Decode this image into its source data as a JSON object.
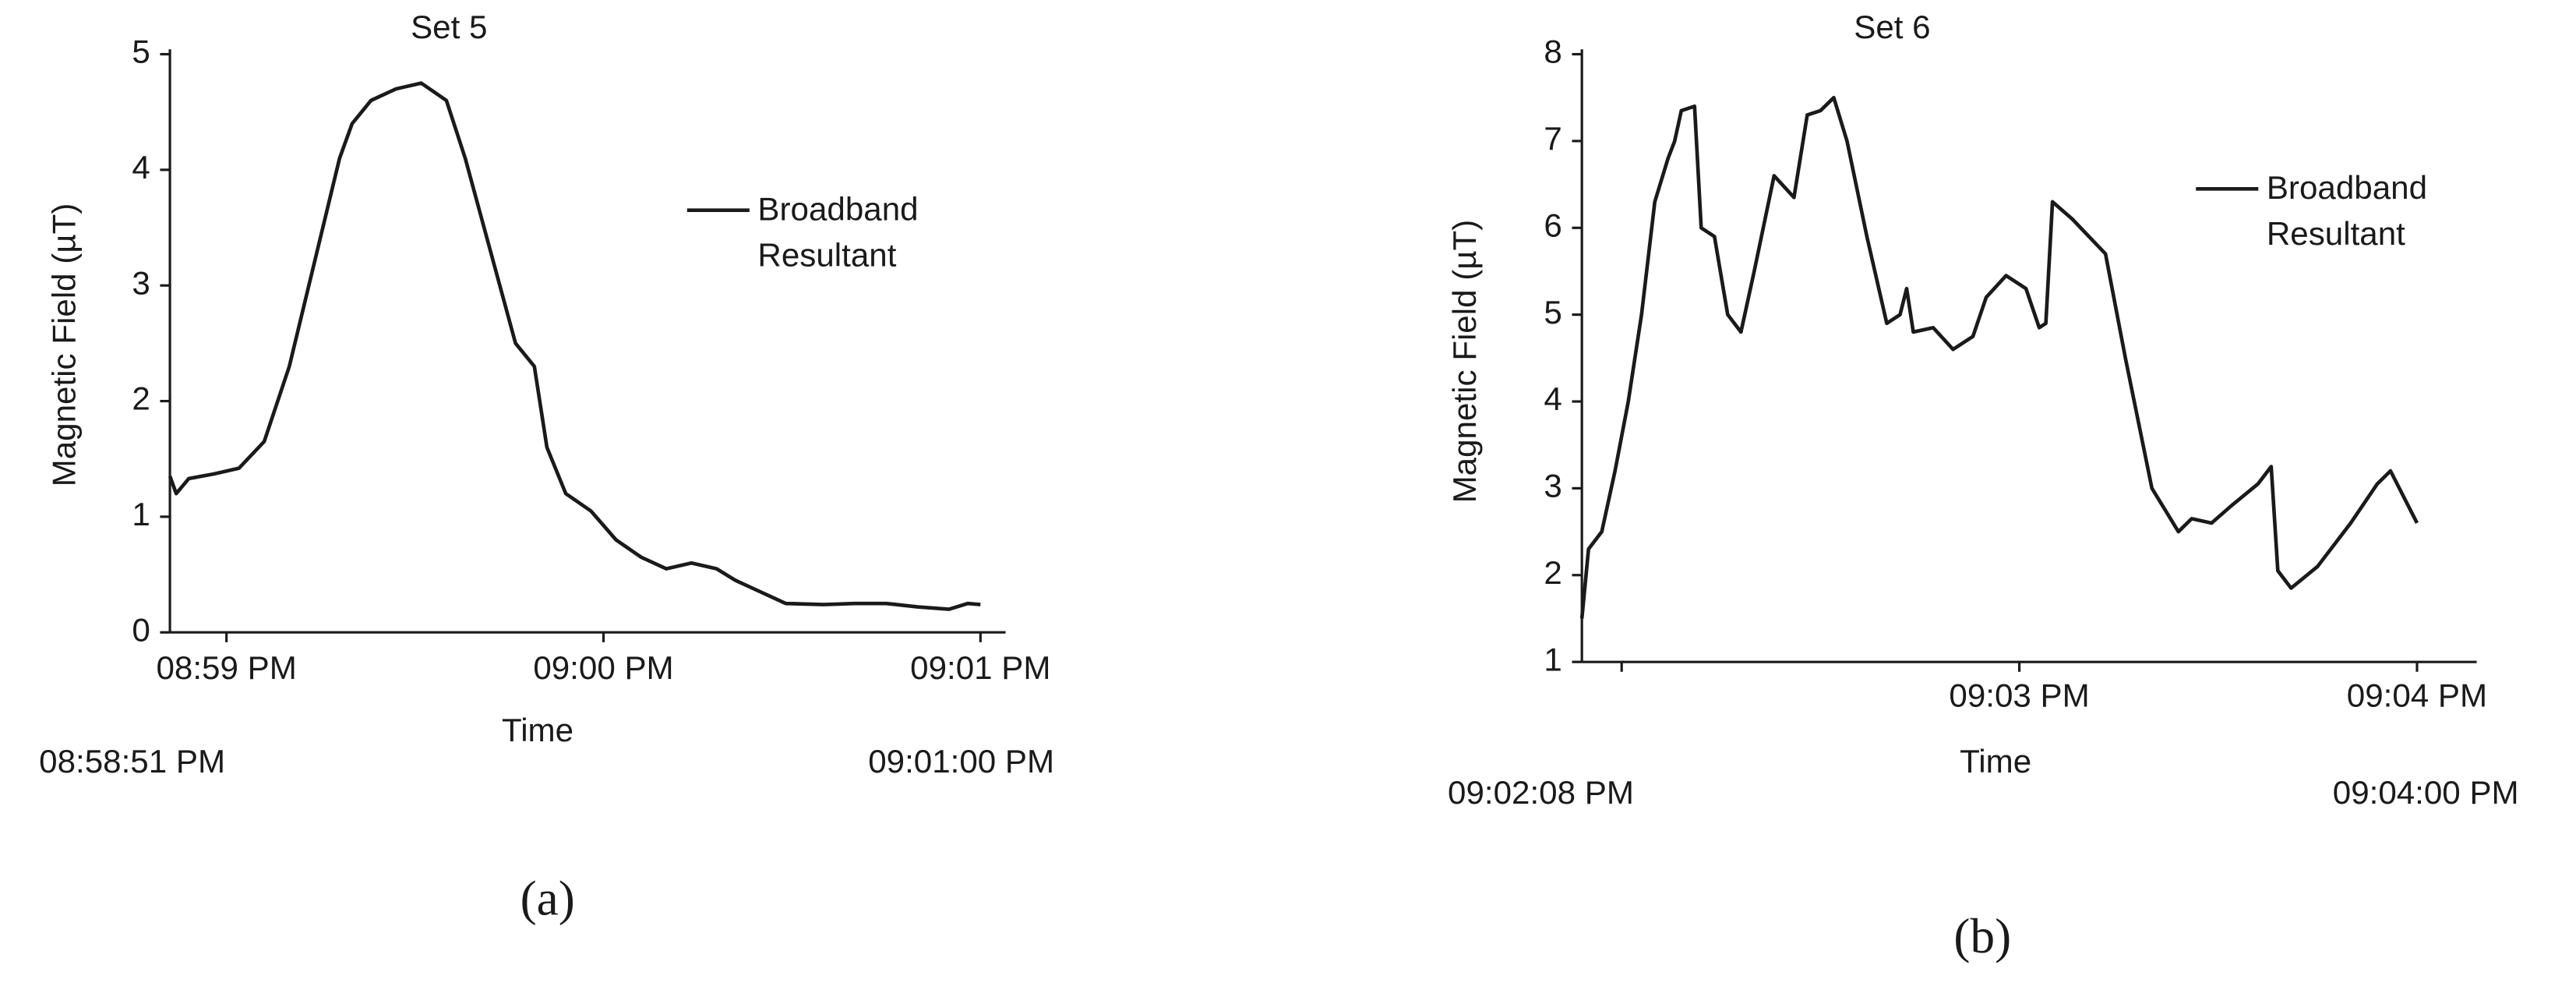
{
  "chart_data": [
    {
      "type": "line",
      "title": "Set 5",
      "y_label": "Magnetic Field (µT)",
      "x_label": "Time",
      "panel_label": "(a)",
      "range_labels": [
        "08:58:51 PM",
        "09:01:00 PM"
      ],
      "xlim": [
        "08:58:51 PM",
        "09:01:04 PM"
      ],
      "xticks": [
        {
          "value": "08:59:00 PM",
          "label": "08:59 PM"
        },
        {
          "value": "09:00:00 PM",
          "label": "09:00 PM"
        },
        {
          "value": "09:01:00 PM",
          "label": "09:01 PM"
        }
      ],
      "ylim": [
        0,
        5
      ],
      "yticks": [
        0,
        1,
        2,
        3,
        4,
        5
      ],
      "x": [
        "08:58:51 PM",
        "08:58:52 PM",
        "08:58:54 PM",
        "08:58:58 PM",
        "08:59:02 PM",
        "08:59:06 PM",
        "08:59:10 PM",
        "08:59:14 PM",
        "08:59:18 PM",
        "08:59:20 PM",
        "08:59:23 PM",
        "08:59:27 PM",
        "08:59:31 PM",
        "08:59:35 PM",
        "08:59:38 PM",
        "08:59:42 PM",
        "08:59:46 PM",
        "08:59:49 PM",
        "08:59:51 PM",
        "08:59:54 PM",
        "08:59:58 PM",
        "09:00:02 PM",
        "09:00:06 PM",
        "09:00:10 PM",
        "09:00:14 PM",
        "09:00:18 PM",
        "09:00:21 PM",
        "09:00:25 PM",
        "09:00:29 PM",
        "09:00:35 PM",
        "09:00:40 PM",
        "09:00:45 PM",
        "09:00:50 PM",
        "09:00:55 PM",
        "09:00:58 PM",
        "09:01:00 PM"
      ],
      "series": [
        {
          "name": "Broadband Resultant",
          "color": "#1a1a1a",
          "values": [
            1.35,
            1.2,
            1.33,
            1.37,
            1.42,
            1.65,
            2.3,
            3.2,
            4.1,
            4.4,
            4.6,
            4.7,
            4.75,
            4.6,
            4.1,
            3.3,
            2.5,
            2.3,
            1.6,
            1.2,
            1.05,
            0.8,
            0.65,
            0.55,
            0.6,
            0.55,
            0.45,
            0.35,
            0.25,
            0.24,
            0.25,
            0.25,
            0.22,
            0.2,
            0.25,
            0.24
          ]
        }
      ]
    },
    {
      "type": "line",
      "title": "Set 6",
      "y_label": "Magnetic Field (µT)",
      "x_label": "Time",
      "panel_label": "(b)",
      "range_labels": [
        "09:02:08 PM",
        "09:04:00 PM"
      ],
      "xlim": [
        "09:01:54 PM",
        "09:04:09 PM"
      ],
      "xticks": [
        {
          "value": "09:02:00 PM",
          "label": null
        },
        {
          "value": "09:03:00 PM",
          "label": "09:03 PM"
        },
        {
          "value": "09:04:00 PM",
          "label": "09:04 PM"
        }
      ],
      "ylim": [
        1,
        8
      ],
      "yticks": [
        1,
        2,
        3,
        4,
        5,
        6,
        7,
        8
      ],
      "x": [
        "09:01:54 PM",
        "09:01:55 PM",
        "09:01:57 PM",
        "09:01:59 PM",
        "09:02:01 PM",
        "09:02:03 PM",
        "09:02:05 PM",
        "09:02:07 PM",
        "09:02:08 PM",
        "09:02:09 PM",
        "09:02:11 PM",
        "09:02:12 PM",
        "09:02:14 PM",
        "09:02:16 PM",
        "09:02:18 PM",
        "09:02:20 PM",
        "09:02:23 PM",
        "09:02:26 PM",
        "09:02:28 PM",
        "09:02:30 PM",
        "09:02:32 PM",
        "09:02:34 PM",
        "09:02:37 PM",
        "09:02:40 PM",
        "09:02:42 PM",
        "09:02:43 PM",
        "09:02:44 PM",
        "09:02:47 PM",
        "09:02:50 PM",
        "09:02:53 PM",
        "09:02:55 PM",
        "09:02:58 PM",
        "09:03:01 PM",
        "09:03:03 PM",
        "09:03:04 PM",
        "09:03:05 PM",
        "09:03:08 PM",
        "09:03:13 PM",
        "09:03:16 PM",
        "09:03:20 PM",
        "09:03:24 PM",
        "09:03:26 PM",
        "09:03:29 PM",
        "09:03:32 PM",
        "09:03:36 PM",
        "09:03:38 PM",
        "09:03:39 PM",
        "09:03:41 PM",
        "09:03:45 PM",
        "09:03:50 PM",
        "09:03:54 PM",
        "09:03:56 PM",
        "09:03:58 PM",
        "09:04:00 PM"
      ],
      "series": [
        {
          "name": "Broadband Resultant",
          "color": "#1a1a1a",
          "values": [
            1.5,
            2.3,
            2.5,
            3.2,
            4.0,
            5.0,
            6.3,
            6.8,
            7.0,
            7.35,
            7.4,
            6.0,
            5.9,
            5.0,
            4.8,
            5.5,
            6.6,
            6.35,
            7.3,
            7.35,
            7.5,
            7.0,
            5.9,
            4.9,
            5.0,
            5.3,
            4.8,
            4.85,
            4.6,
            4.75,
            5.2,
            5.45,
            5.3,
            4.85,
            4.9,
            6.3,
            6.1,
            5.7,
            4.5,
            3.0,
            2.5,
            2.65,
            2.6,
            2.8,
            3.05,
            3.25,
            2.05,
            1.85,
            2.1,
            2.6,
            3.05,
            3.2,
            2.9,
            2.6
          ]
        }
      ]
    }
  ]
}
